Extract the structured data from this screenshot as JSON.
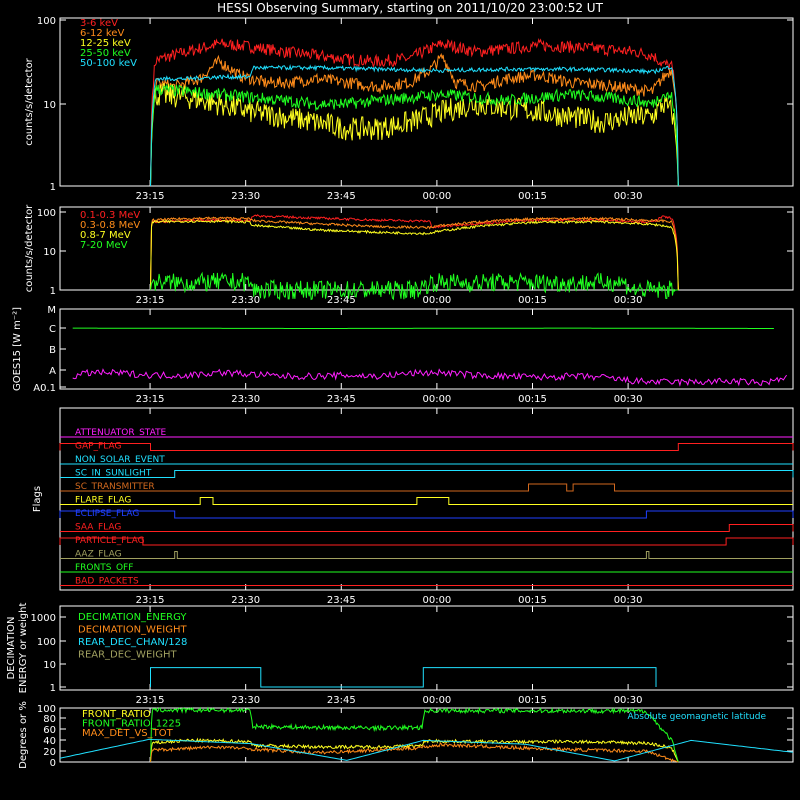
{
  "title": "HESSI Observing Summary, starting on 2011/10/20 23:00:52 UT",
  "time_ticks": [
    "23:15",
    "23:30",
    "23:45",
    "00:00",
    "00:15",
    "00:30"
  ],
  "colors": {
    "red": "#ff2020",
    "orange": "#ff8c1a",
    "yellow": "#ffff20",
    "green": "#20ff20",
    "cyan": "#20e0ff",
    "magenta": "#ff20ff",
    "blue": "#2040ff",
    "darkorange": "#d2691e",
    "olive": "#a0a060",
    "white": "#ffffff"
  },
  "chart_data": [
    {
      "type": "line",
      "panel": "lc_low",
      "ylabel": "counts/s/detector",
      "yscale": "log",
      "ylim": [
        1,
        100
      ],
      "y_tick_labels": [
        "1",
        "10",
        "100"
      ],
      "x_unit": "minutes after 23:00:52 UT",
      "xlim": [
        0,
        115
      ],
      "series": [
        {
          "name": "3-6 keV",
          "color": "red",
          "x": [
            14.2,
            15,
            20,
            25,
            30,
            35,
            40,
            45,
            50,
            55,
            58,
            60,
            65,
            70,
            75,
            80,
            85,
            90,
            93,
            94.5,
            96,
            97
          ],
          "y": [
            1,
            33,
            42,
            52,
            48,
            42,
            38,
            34,
            32,
            35,
            45,
            52,
            42,
            45,
            50,
            48,
            45,
            42,
            38,
            30,
            28,
            1
          ]
        },
        {
          "name": "6-12 keV",
          "color": "orange",
          "x": [
            14.2,
            15,
            18,
            22,
            25,
            28,
            32,
            36,
            40,
            45,
            50,
            55,
            58,
            60,
            62,
            66,
            70,
            75,
            80,
            85,
            90,
            93,
            94.5,
            96,
            97
          ],
          "y": [
            1,
            18,
            16,
            20,
            32,
            22,
            18,
            18,
            20,
            18,
            16,
            18,
            25,
            36,
            18,
            16,
            20,
            22,
            18,
            17,
            15,
            14,
            20,
            26,
            1
          ]
        },
        {
          "name": "12-25 keV",
          "color": "yellow",
          "x": [
            14.2,
            15,
            20,
            25,
            30,
            35,
            40,
            45,
            50,
            55,
            60,
            65,
            70,
            75,
            80,
            85,
            90,
            93,
            94.5,
            96,
            97
          ],
          "y": [
            1,
            13,
            12,
            10,
            8,
            7,
            6,
            5,
            5,
            6,
            8,
            10,
            9,
            8,
            7,
            6,
            7,
            7,
            10,
            8,
            1
          ]
        },
        {
          "name": "25-50 keV",
          "color": "green",
          "x": [
            14.2,
            15,
            20,
            25,
            30,
            35,
            40,
            45,
            50,
            55,
            60,
            65,
            70,
            75,
            80,
            85,
            90,
            93,
            94.5,
            96,
            97
          ],
          "y": [
            1,
            15,
            14,
            13,
            12,
            11,
            10,
            10,
            11,
            12,
            13,
            12,
            11,
            12,
            13,
            12,
            11,
            10,
            13,
            12,
            1
          ]
        },
        {
          "name": "50-100 keV",
          "color": "cyan",
          "x": [
            14.2,
            15,
            20,
            25,
            29.8,
            30.2,
            40,
            50,
            60,
            70,
            80,
            90,
            93,
            94.5,
            96,
            97
          ],
          "y": [
            1,
            20,
            20,
            21,
            21,
            27,
            27,
            26,
            25,
            26,
            26,
            25,
            24,
            26,
            28,
            1
          ]
        }
      ]
    },
    {
      "type": "line",
      "panel": "lc_high",
      "ylabel": "counts/s/detector",
      "yscale": "log",
      "ylim": [
        1,
        100
      ],
      "y_tick_labels": [
        "1",
        "10",
        "100"
      ],
      "x_unit": "minutes after 23:00:52 UT",
      "xlim": [
        0,
        115
      ],
      "series": [
        {
          "name": "0.1-0.3 MeV",
          "color": "red",
          "x": [
            14.2,
            14.4,
            20,
            25,
            29.8,
            30.2,
            40,
            50,
            58,
            58.4,
            65,
            75,
            85,
            93,
            94.5,
            96,
            97
          ],
          "y": [
            1,
            55,
            60,
            62,
            60,
            80,
            70,
            62,
            58,
            40,
            50,
            62,
            62,
            55,
            75,
            70,
            1
          ]
        },
        {
          "name": "0.3-0.8 MeV",
          "color": "orange",
          "x": [
            14.2,
            14.4,
            20,
            25,
            29.8,
            30.2,
            40,
            50,
            58,
            58.4,
            65,
            75,
            85,
            93,
            94.5,
            96,
            97
          ],
          "y": [
            1,
            62,
            68,
            70,
            67,
            60,
            50,
            42,
            40,
            42,
            55,
            68,
            68,
            60,
            60,
            55,
            1
          ]
        },
        {
          "name": "0.8-7 MeV",
          "color": "yellow",
          "x": [
            14.2,
            14.4,
            20,
            25,
            29.8,
            30.2,
            40,
            50,
            58,
            58.4,
            65,
            75,
            85,
            93,
            94.5,
            96,
            97
          ],
          "y": [
            1,
            55,
            58,
            58,
            55,
            45,
            35,
            30,
            28,
            30,
            42,
            55,
            56,
            48,
            45,
            40,
            1
          ]
        },
        {
          "name": "7-20 MeV",
          "color": "green",
          "x": [
            14.2,
            14.4,
            20,
            25,
            29.8,
            30.2,
            56,
            58,
            60,
            65,
            70,
            80,
            88,
            90,
            97
          ],
          "y": [
            1,
            1.6,
            1.5,
            1.6,
            1.6,
            1,
            1,
            1.5,
            1.6,
            1.5,
            1.6,
            1.5,
            1.6,
            1,
            1
          ]
        }
      ]
    },
    {
      "type": "line",
      "panel": "goes",
      "ylabel": "GOES15 [W m⁻²]",
      "y_tick_labels": [
        "A0.1",
        "A",
        "B",
        "C",
        "M"
      ],
      "x_unit": "minutes after 23:00:52 UT",
      "xlim": [
        0,
        115
      ],
      "series": [
        {
          "color": "green",
          "x": [
            2,
            40,
            80,
            112
          ],
          "y": [
            3.02,
            3.0,
            3.02,
            3.0
          ]
        },
        {
          "color": "magenta",
          "x": [
            2,
            5,
            10,
            15,
            20,
            25,
            30,
            35,
            40,
            45,
            50,
            55,
            60,
            65,
            70,
            75,
            80,
            85,
            90,
            95,
            100,
            105,
            110,
            114
          ],
          "y": [
            0.55,
            0.75,
            0.7,
            0.6,
            0.6,
            0.75,
            0.65,
            0.55,
            0.55,
            0.6,
            0.55,
            0.7,
            0.75,
            0.6,
            0.55,
            0.5,
            0.55,
            0.5,
            0.3,
            0.25,
            0.25,
            0.3,
            0.2,
            0.45
          ]
        }
      ]
    },
    {
      "type": "line",
      "panel": "flags",
      "ylabel": "Flags",
      "flags": [
        {
          "name": "ATTENUATOR_STATE",
          "color": "magenta",
          "highs": []
        },
        {
          "name": "GAP_FLAG",
          "color": "red",
          "highs": [
            [
              0,
              14.2
            ],
            [
              97,
              115
            ]
          ]
        },
        {
          "name": "NON_SOLAR_EVENT",
          "color": "cyan",
          "highs": []
        },
        {
          "name": "SC_IN_SUNLIGHT",
          "color": "cyan",
          "highs": [
            [
              18,
              115
            ]
          ]
        },
        {
          "name": "SC_TRANSMITTER",
          "color": "darkorange",
          "highs": [
            [
              73.5,
              79.5
            ],
            [
              80.5,
              87
            ]
          ]
        },
        {
          "name": "FLARE_FLAG",
          "color": "yellow",
          "highs": [
            [
              22,
              24
            ],
            [
              56,
              61
            ]
          ]
        },
        {
          "name": "ECLIPSE_FLAG",
          "color": "blue",
          "highs": [
            [
              0,
              18
            ],
            [
              92,
              115
            ]
          ]
        },
        {
          "name": "SAA_FLAG",
          "color": "red",
          "highs": [
            [
              105,
              115
            ]
          ]
        },
        {
          "name": "PARTICLE_FLAG",
          "color": "red",
          "highs": [
            [
              0,
              13
            ],
            [
              104.5,
              115
            ]
          ]
        },
        {
          "name": "AAZ_FLAG",
          "color": "olive",
          "highs": [
            [
              18,
              18.4
            ],
            [
              92,
              92.4
            ]
          ]
        },
        {
          "name": "FRONTS_OFF",
          "color": "green",
          "highs": []
        },
        {
          "name": "BAD_PACKETS",
          "color": "red",
          "highs": []
        }
      ]
    },
    {
      "type": "line",
      "panel": "decimation",
      "ylabel": "DECIMATION ENERGY or weight",
      "yscale": "log",
      "ylim": [
        1,
        1000
      ],
      "y_tick_labels": [
        "1",
        "10",
        "100",
        "1000"
      ],
      "x_unit": "minutes after 23:00:52 UT",
      "xlim": [
        0,
        115
      ],
      "series": [
        {
          "name": "DECIMATION_ENERGY",
          "color": "green",
          "x": [
            0
          ],
          "y": [
            1
          ]
        },
        {
          "name": "DECIMATION_WEIGHT",
          "color": "orange",
          "x": [
            0
          ],
          "y": [
            1
          ]
        },
        {
          "name": "REAR_DEC_CHAN/128",
          "color": "cyan",
          "x": [
            14.2,
            14.2,
            31.5,
            31.5,
            57,
            57,
            93.5,
            93.5
          ],
          "y": [
            1,
            7,
            7,
            1,
            1,
            7,
            7,
            1
          ]
        },
        {
          "name": "REAR_DEC_WEIGHT",
          "color": "olive",
          "x": [
            0
          ],
          "y": [
            1
          ]
        }
      ]
    },
    {
      "type": "line",
      "panel": "ratios",
      "ylabel": "Degrees or %",
      "ylim": [
        0,
        100
      ],
      "y_tick_labels": [
        "0",
        "20",
        "40",
        "60",
        "80",
        "100"
      ],
      "x_unit": "minutes after 23:00:52 UT",
      "xlim": [
        0,
        115
      ],
      "annotation": "Absolute geomagnetic latitude",
      "series": [
        {
          "name": "FRONT_RATIO",
          "color": "yellow",
          "x": [
            14.2,
            14.4,
            20,
            29.8,
            30.2,
            40,
            50,
            56.8,
            57.2,
            70,
            80,
            92,
            94.5,
            96,
            97
          ],
          "y": [
            0,
            35,
            40,
            38,
            31,
            28,
            28,
            30,
            39,
            37,
            38,
            35,
            30,
            25,
            0
          ]
        },
        {
          "name": "FRONT_RATIO_1225",
          "color": "green",
          "x": [
            14.2,
            14.4,
            29.8,
            30.2,
            40,
            50,
            56.8,
            57.2,
            70,
            80,
            92,
            94.5,
            96,
            97
          ],
          "y": [
            0,
            96,
            96,
            66,
            64,
            63,
            64,
            95,
            95,
            95,
            94,
            60,
            40,
            0
          ]
        },
        {
          "name": "MAX_DET_VS_TOT",
          "color": "orange",
          "x": [
            14.2,
            14.4,
            25,
            30,
            40,
            55,
            60,
            70,
            80,
            92,
            97
          ],
          "y": [
            0,
            22,
            28,
            24,
            17,
            25,
            32,
            27,
            23,
            20,
            0
          ]
        },
        {
          "color": "cyan",
          "x": [
            0,
            14,
            30,
            45,
            57,
            73,
            87,
            99,
            115
          ],
          "y": [
            7,
            42,
            34,
            3,
            40,
            33,
            2,
            40,
            18
          ]
        }
      ]
    }
  ]
}
